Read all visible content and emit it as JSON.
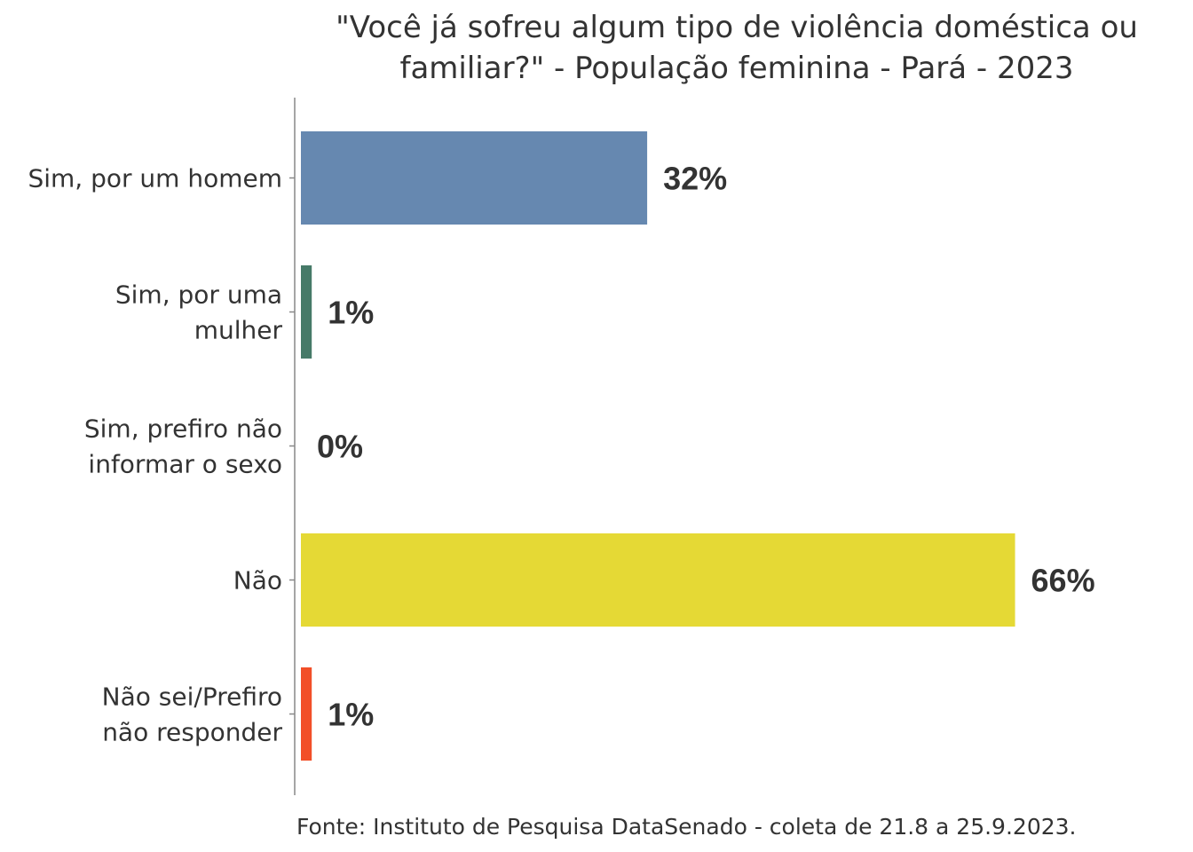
{
  "chart_data": {
    "type": "bar",
    "orientation": "horizontal",
    "title": [
      "\"Você já sofreu algum tipo de violência doméstica ou",
      "familiar?\" - População feminina - Pará - 2023"
    ],
    "categories": [
      [
        "Sim, por um homem"
      ],
      [
        "Sim, por uma",
        "mulher"
      ],
      [
        "Sim, prefiro não",
        "informar o sexo"
      ],
      [
        "Não"
      ],
      [
        "Não sei/Prefiro",
        "não responder"
      ]
    ],
    "values": [
      32,
      1,
      0,
      66,
      1
    ],
    "data_labels": [
      "32%",
      "1%",
      "0%",
      "66%",
      "1%"
    ],
    "colors": [
      "#6688B0",
      "#467A68",
      "#7A9A8A",
      "#E5D935",
      "#F24F28"
    ],
    "xlabel": "",
    "ylabel": "",
    "grid": false,
    "caption": "Fonte: Instituto de Pesquisa DataSenado - coleta de 21.8 a 25.9.2023."
  }
}
